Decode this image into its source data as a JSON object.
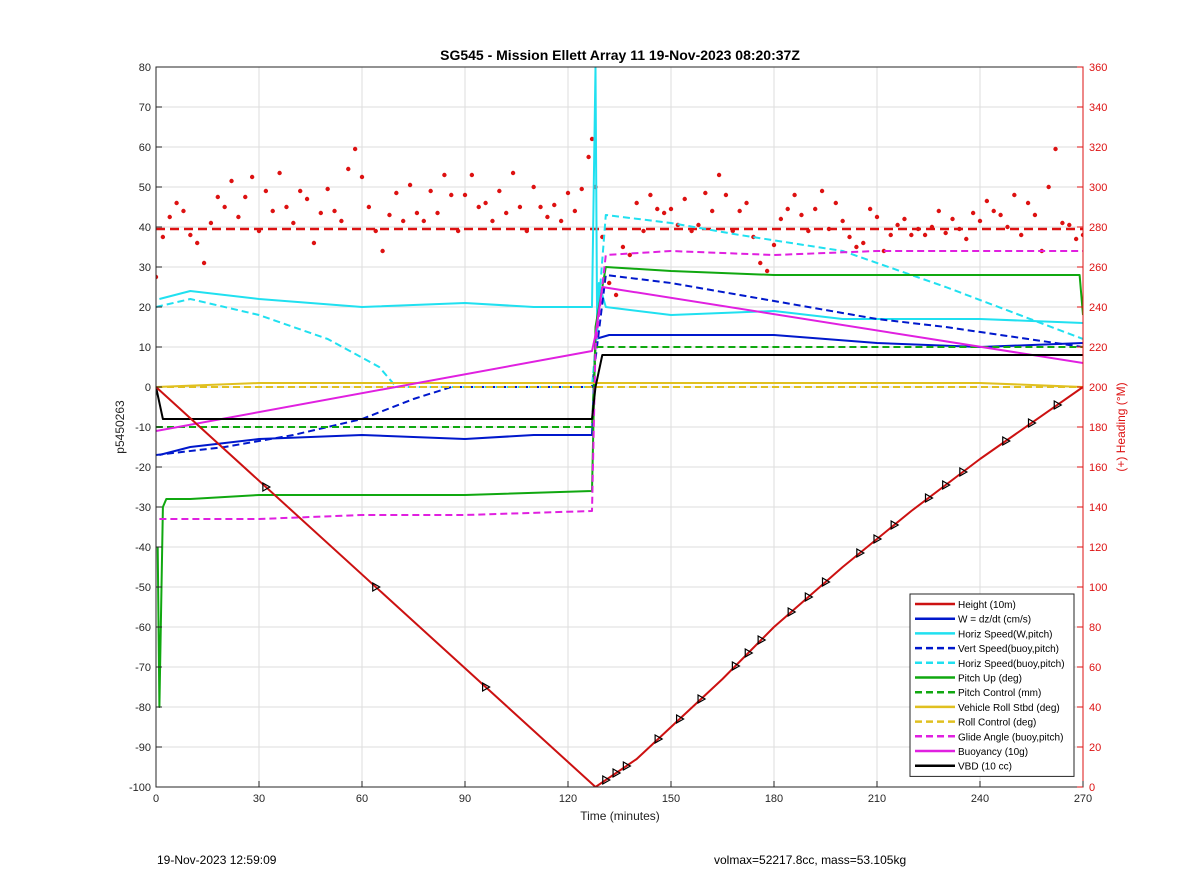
{
  "chart_data": {
    "type": "line",
    "title": "SG545 - Mission Ellett Array 11 19-Nov-2023 08:20:37Z",
    "xlabel": "Time (minutes)",
    "ylabel": "p5450263",
    "ylabel_right": "(+) Heading (°M)",
    "xlim": [
      0,
      270
    ],
    "ylim": [
      -100,
      80
    ],
    "ylim_right": [
      0,
      360
    ],
    "x_ticks": [
      0,
      30,
      60,
      90,
      120,
      150,
      180,
      210,
      240,
      270
    ],
    "y_ticks": [
      -100,
      -90,
      -80,
      -70,
      -60,
      -50,
      -40,
      -30,
      -20,
      -10,
      0,
      10,
      20,
      30,
      40,
      50,
      60,
      70,
      80
    ],
    "y_ticks_right": [
      0,
      20,
      40,
      60,
      80,
      100,
      120,
      140,
      160,
      180,
      200,
      220,
      240,
      260,
      280,
      300,
      320,
      340,
      360
    ],
    "grid": true,
    "legend_position": "bottom-right",
    "series": [
      {
        "name": "Height (10m)",
        "color": "#cc1111",
        "style": "solid",
        "x": [
          0,
          128,
          140,
          165,
          180,
          200,
          220,
          240,
          270
        ],
        "y": [
          0,
          -100,
          -93,
          -73,
          -60,
          -45,
          -31,
          -18,
          0
        ]
      },
      {
        "name": "W = dz/dt (cm/s)",
        "color": "#0018cc",
        "style": "solid",
        "x": [
          1,
          10,
          30,
          60,
          90,
          110,
          127,
          128,
          132,
          150,
          180,
          210,
          240,
          270
        ],
        "y": [
          -17,
          -15,
          -13,
          -12,
          -13,
          -12,
          -12,
          12,
          13,
          13,
          13,
          11,
          10,
          11
        ]
      },
      {
        "name": "Horiz Speed(W,pitch)",
        "color": "#20e0f0",
        "style": "solid",
        "x": [
          1,
          10,
          30,
          60,
          90,
          110,
          127,
          128,
          128.5,
          129,
          131,
          150,
          180,
          200,
          240,
          270
        ],
        "y": [
          22,
          24,
          22,
          20,
          21,
          20,
          20,
          80,
          12,
          26,
          20,
          18,
          19,
          17,
          17,
          16
        ]
      },
      {
        "name": "Vert Speed(buoy,pitch)",
        "color": "#0018cc",
        "style": "dashed",
        "x": [
          0,
          20,
          40,
          60,
          75,
          86,
          90,
          127,
          128,
          131,
          150,
          170,
          190,
          210,
          230,
          270
        ],
        "y": [
          -17,
          -15,
          -12,
          -8,
          -3,
          0,
          0,
          0,
          7,
          28,
          26,
          23,
          20,
          17,
          15,
          10
        ]
      },
      {
        "name": "Horiz Speed(buoy,pitch)",
        "color": "#20e0f0",
        "style": "dashed",
        "x": [
          0,
          10,
          30,
          50,
          65,
          70,
          127,
          128,
          131,
          150,
          170,
          200,
          230,
          270
        ],
        "y": [
          20,
          22,
          18,
          12,
          5,
          0,
          0,
          10,
          43,
          41,
          38,
          34,
          25,
          12
        ]
      },
      {
        "name": "Pitch Up (deg)",
        "color": "#10a810",
        "style": "solid",
        "x": [
          0.5,
          1,
          2,
          3,
          10,
          30,
          60,
          90,
          127,
          128,
          131,
          150,
          180,
          210,
          240,
          269,
          270
        ],
        "y": [
          -40,
          -80,
          -30,
          -28,
          -28,
          -27,
          -27,
          -27,
          -26,
          15,
          30,
          29,
          28,
          28,
          28,
          28,
          18
        ]
      },
      {
        "name": "Pitch Control (mm)",
        "color": "#10a810",
        "style": "dashed",
        "x": [
          0,
          127,
          128,
          270
        ],
        "y": [
          -10,
          -10,
          10,
          10
        ]
      },
      {
        "name": "Vehicle Roll Stbd (deg)",
        "color": "#e0c020",
        "style": "solid",
        "x": [
          0,
          30,
          60,
          90,
          127,
          131,
          160,
          200,
          240,
          270
        ],
        "y": [
          0,
          1,
          1,
          1,
          1,
          1,
          1,
          1,
          1,
          0
        ]
      },
      {
        "name": "Roll Control (deg)",
        "color": "#e0c020",
        "style": "dashed",
        "x": [
          0,
          30,
          60,
          90,
          127,
          131,
          160,
          200,
          240,
          270
        ],
        "y": [
          0,
          0,
          0,
          0,
          0,
          0,
          0,
          0,
          0,
          0
        ]
      },
      {
        "name": "Glide Angle (buoy,pitch)",
        "color": "#e020e0",
        "style": "dashed",
        "x": [
          1,
          10,
          30,
          60,
          90,
          127,
          128,
          131,
          150,
          180,
          210,
          240,
          270
        ],
        "y": [
          -33,
          -33,
          -33,
          -32,
          -32,
          -31,
          10,
          33,
          34,
          33,
          34,
          34,
          34
        ]
      },
      {
        "name": "Buoyancy (10g)",
        "color": "#e020e0",
        "style": "solid",
        "x": [
          0,
          127,
          128,
          130,
          270
        ],
        "y": [
          -11,
          9,
          13,
          25,
          6
        ]
      },
      {
        "name": "VBD (10 cc)",
        "color": "#000000",
        "style": "solid",
        "x": [
          0,
          2,
          127,
          128,
          130,
          270
        ],
        "y": [
          0,
          -8,
          -8,
          0,
          8,
          8
        ]
      }
    ],
    "heading_series": {
      "color": "#dd1111",
      "style": "dotted",
      "axis": "right",
      "reference_value": 279,
      "x": [
        0,
        2,
        4,
        6,
        8,
        10,
        12,
        14,
        16,
        18,
        20,
        22,
        24,
        26,
        28,
        30,
        32,
        34,
        36,
        38,
        40,
        42,
        44,
        46,
        48,
        50,
        52,
        54,
        56,
        58,
        60,
        62,
        64,
        66,
        68,
        70,
        72,
        74,
        76,
        78,
        80,
        82,
        84,
        86,
        88,
        90,
        92,
        94,
        96,
        98,
        100,
        102,
        104,
        106,
        108,
        110,
        112,
        114,
        116,
        118,
        120,
        122,
        124,
        126,
        127,
        128,
        130,
        132,
        134,
        136,
        138,
        140,
        142,
        144,
        146,
        148,
        150,
        152,
        154,
        156,
        158,
        160,
        162,
        164,
        166,
        168,
        170,
        172,
        174,
        176,
        178,
        180,
        182,
        184,
        186,
        188,
        190,
        192,
        194,
        196,
        198,
        200,
        202,
        204,
        206,
        208,
        210,
        212,
        214,
        216,
        218,
        220,
        222,
        224,
        226,
        228,
        230,
        232,
        234,
        236,
        238,
        240,
        242,
        244,
        246,
        248,
        250,
        252,
        254,
        256,
        258,
        260,
        262,
        264,
        266,
        268,
        270
      ],
      "y": [
        255,
        275,
        285,
        292,
        288,
        276,
        272,
        262,
        282,
        295,
        290,
        303,
        285,
        295,
        305,
        278,
        298,
        288,
        307,
        290,
        282,
        298,
        294,
        272,
        287,
        299,
        288,
        283,
        309,
        319,
        305,
        290,
        278,
        268,
        286,
        297,
        283,
        301,
        287,
        283,
        298,
        287,
        306,
        296,
        278,
        296,
        306,
        290,
        292,
        283,
        298,
        287,
        307,
        290,
        278,
        300,
        290,
        285,
        291,
        283,
        297,
        288,
        299,
        315,
        324,
        300,
        275,
        252,
        246,
        270,
        266,
        292,
        278,
        296,
        289,
        287,
        289,
        281,
        294,
        278,
        281,
        297,
        288,
        306,
        296,
        278,
        288,
        292,
        275,
        262,
        258,
        271,
        284,
        289,
        296,
        286,
        278,
        289,
        298,
        279,
        292,
        283,
        275,
        270,
        272,
        289,
        285,
        268,
        276,
        281,
        284,
        276,
        279,
        276,
        280,
        288,
        277,
        284,
        279,
        274,
        287,
        283,
        293,
        288,
        286,
        280,
        296,
        276,
        292,
        286,
        268,
        300,
        319,
        282,
        281,
        274,
        276
      ]
    },
    "legend": [
      {
        "label": "Height (10m)",
        "color": "#cc1111",
        "style": "solid"
      },
      {
        "label": "W = dz/dt (cm/s)",
        "color": "#0018cc",
        "style": "solid"
      },
      {
        "label": "Horiz Speed(W,pitch)",
        "color": "#20e0f0",
        "style": "solid"
      },
      {
        "label": "Vert Speed(buoy,pitch)",
        "color": "#0018cc",
        "style": "dashed"
      },
      {
        "label": "Horiz Speed(buoy,pitch)",
        "color": "#20e0f0",
        "style": "dashed"
      },
      {
        "label": "Pitch Up (deg)",
        "color": "#10a810",
        "style": "solid"
      },
      {
        "label": "Pitch Control (mm)",
        "color": "#10a810",
        "style": "dashed"
      },
      {
        "label": "Vehicle Roll Stbd (deg)",
        "color": "#e0c020",
        "style": "solid"
      },
      {
        "label": "Roll Control (deg)",
        "color": "#e0c020",
        "style": "dashed"
      },
      {
        "label": "Glide Angle (buoy,pitch)",
        "color": "#e020e0",
        "style": "dashed"
      },
      {
        "label": "Buoyancy (10g)",
        "color": "#e020e0",
        "style": "solid"
      },
      {
        "label": "VBD (10 cc)",
        "color": "#000000",
        "style": "solid"
      }
    ]
  },
  "footer": {
    "timestamp": "19-Nov-2023 12:59:09",
    "vehicle_info": "volmax=52217.8cc, mass=53.105kg"
  }
}
